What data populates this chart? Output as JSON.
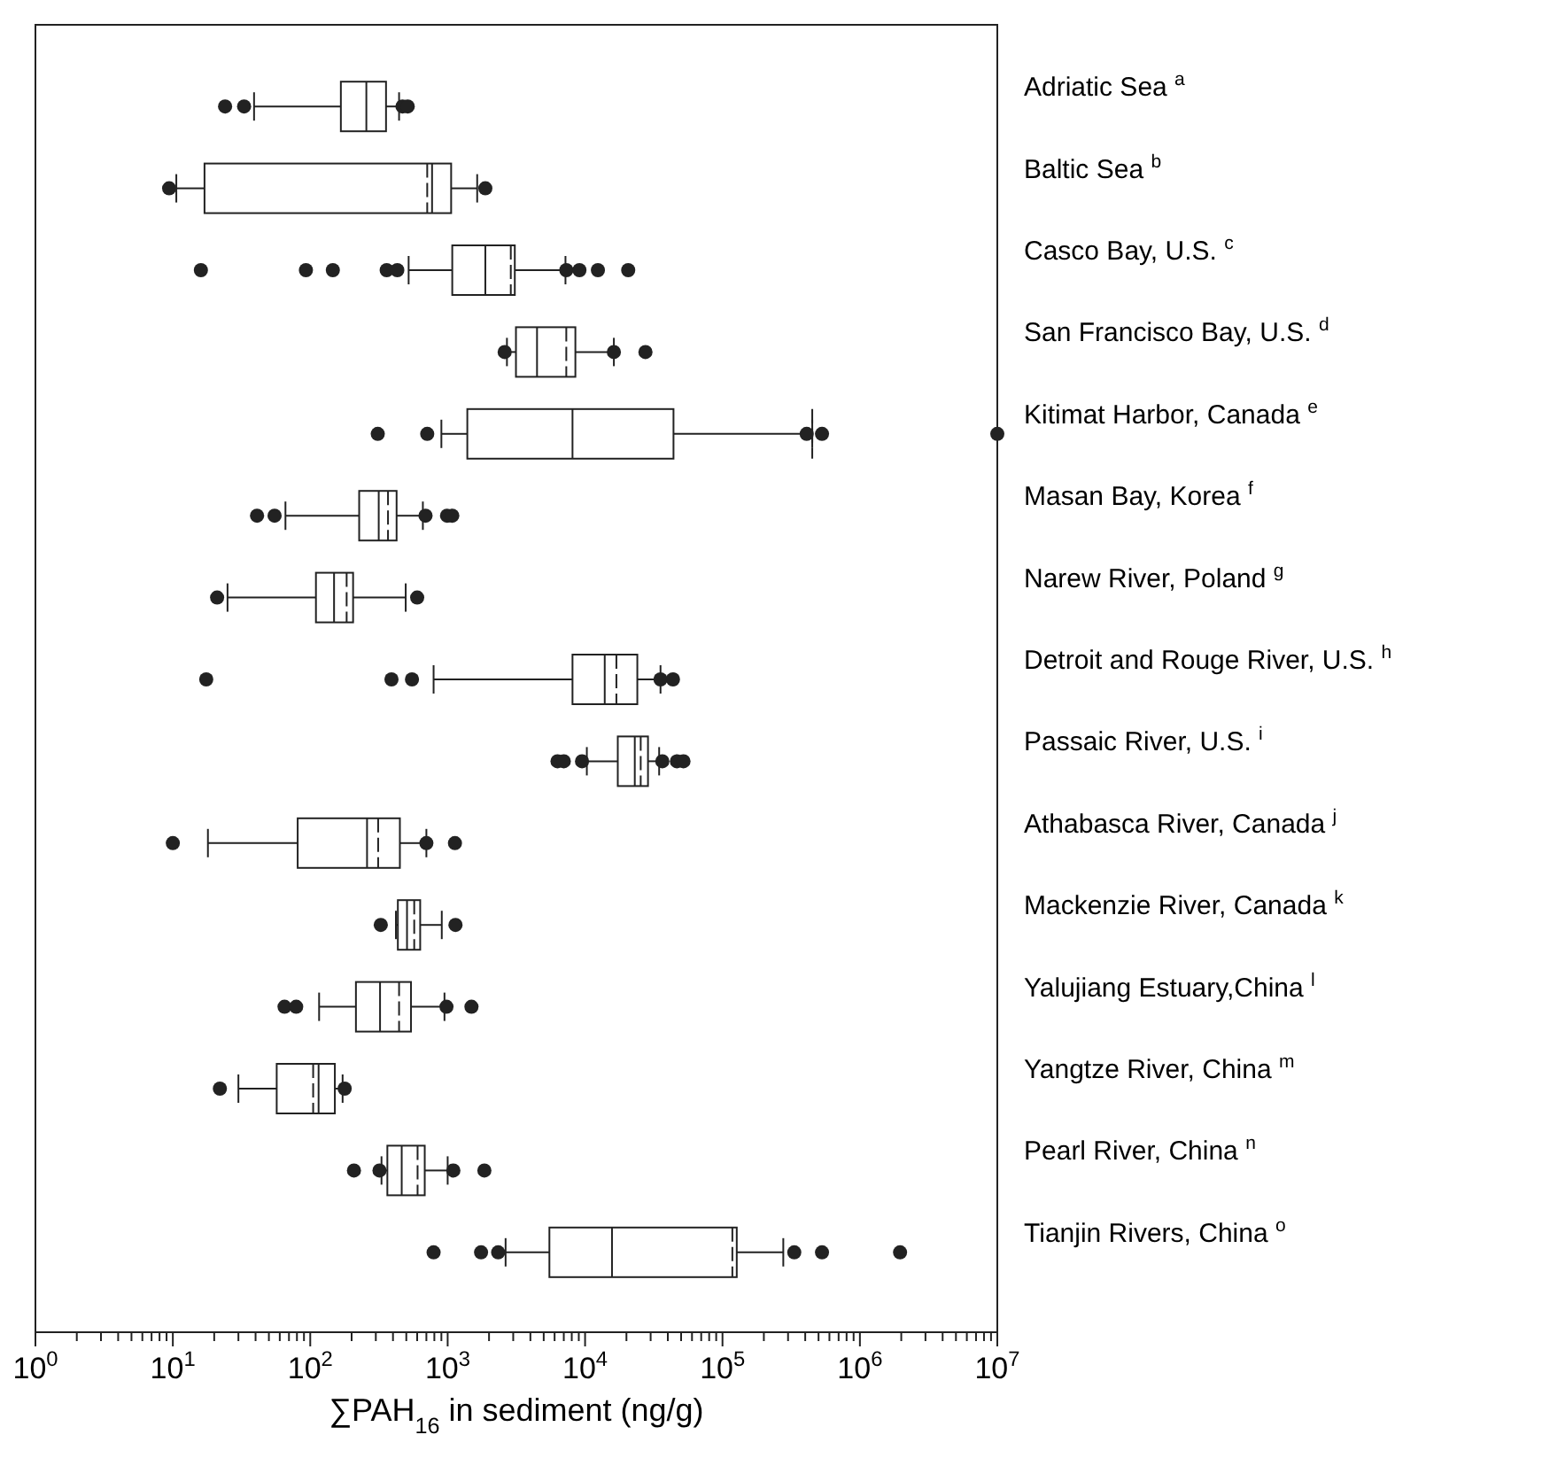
{
  "chart_data": {
    "type": "box",
    "orientation": "horizontal",
    "log": "x",
    "xlabel": "∑PAH$_{16}$ in sediment (ng/g)",
    "categories": [
      "Adriatic Sea $^{a}$",
      "Baltic Sea $^{b}$",
      "Casco Bay, U.S. $^{c}$",
      "San Francisco Bay, U.S. $^{d}$",
      "Kitimat Harbor, Canada $^{e}$",
      "Masan Bay, Korea $^{f}$",
      "Narew River, Poland $^{g}$",
      "Detroit and Rouge River, U.S. $^{h}$",
      "Passaic River, U.S. $^{i}$",
      "Athabasca River, Canada $^{j}$",
      "Mackenzie River, Canada $^{k}$",
      "Yalujiang Estuary,China $^{l}$",
      "Yangtze River, China $^{m}$",
      "Pearl River, China $^{n}$",
      "Tianjin Rivers, China $^{o}$"
    ],
    "boxes": [
      {
        "low": 39,
        "q1": 167,
        "median": 256,
        "q3": 356,
        "high": 443,
        "outliers": [
          24,
          33,
          469,
          512
        ]
      },
      {
        "low": 10.6,
        "q1": 17,
        "median": 770,
        "q3": 1060,
        "high": 1640,
        "mean": 710,
        "outliers": [
          9.4,
          1880
        ]
      },
      {
        "low": 520,
        "q1": 1080,
        "median": 1880,
        "q3": 3080,
        "high": 7200,
        "mean": 2880,
        "outliers": [
          16,
          93,
          146,
          360,
          430,
          7300,
          9100,
          12400,
          20600
        ]
      },
      {
        "low": 2700,
        "q1": 3140,
        "median": 4470,
        "q3": 8500,
        "high": 16200,
        "mean": 7300,
        "outliers": [
          2600,
          16200,
          27500
        ]
      },
      {
        "low": 900,
        "q1": 1390,
        "median": 8100,
        "q3": 44000,
        "high": 450000,
        "mean": 450000,
        "outliers": [
          310,
          710,
          410000,
          530000,
          10000000
        ]
      },
      {
        "low": 66,
        "q1": 227,
        "median": 315,
        "q3": 425,
        "high": 660,
        "mean": 368,
        "outliers": [
          41,
          55,
          690,
          990,
          1080
        ]
      },
      {
        "low": 25,
        "q1": 110,
        "median": 149,
        "q3": 205,
        "high": 495,
        "mean": 184,
        "outliers": [
          21,
          600
        ]
      },
      {
        "low": 790,
        "q1": 8100,
        "median": 13900,
        "q3": 24000,
        "high": 35400,
        "mean": 16900,
        "outliers": [
          17.5,
          390,
          550,
          35400,
          43600
        ]
      },
      {
        "low": 10300,
        "q1": 17300,
        "median": 23000,
        "q3": 28700,
        "high": 34600,
        "mean": 25400,
        "outliers": [
          6300,
          7000,
          9500,
          36500,
          46600,
          52000
        ]
      },
      {
        "low": 18,
        "q1": 81,
        "median": 259,
        "q3": 449,
        "high": 700,
        "mean": 312,
        "outliers": [
          10,
          700,
          1130
        ]
      },
      {
        "low": 420,
        "q1": 434,
        "median": 506,
        "q3": 631,
        "high": 906,
        "mean": 571,
        "outliers": [
          326,
          1140
        ]
      },
      {
        "low": 116,
        "q1": 215,
        "median": 322,
        "q3": 541,
        "high": 948,
        "mean": 443,
        "outliers": [
          65,
          79,
          980,
          1490
        ]
      },
      {
        "low": 30,
        "q1": 57,
        "median": 115,
        "q3": 151,
        "high": 172,
        "mean": 105,
        "outliers": [
          22,
          178
        ]
      },
      {
        "low": 330,
        "q1": 364,
        "median": 463,
        "q3": 681,
        "high": 1000,
        "mean": 604,
        "outliers": [
          208,
          319,
          1100,
          1850
        ]
      },
      {
        "low": 2640,
        "q1": 5500,
        "median": 15700,
        "q3": 127000,
        "high": 277000,
        "mean": 118000,
        "outliers": [
          790,
          1750,
          2330,
          333000,
          530000,
          1960000
        ]
      }
    ],
    "xlim": [
      1,
      10000000
    ],
    "xticks": [
      {
        "value": 1,
        "label": "10$^{0}$"
      },
      {
        "value": 2,
        "label": null
      },
      {
        "value": 3,
        "label": null
      },
      {
        "value": 4,
        "label": null
      },
      {
        "value": 5,
        "label": null
      },
      {
        "value": 6,
        "label": null
      },
      {
        "value": 7,
        "label": null
      },
      {
        "value": 8,
        "label": null
      },
      {
        "value": 9,
        "label": null
      },
      {
        "value": 10,
        "label": "10$^{1}$"
      },
      {
        "value": 20,
        "label": null
      },
      {
        "value": 30,
        "label": null
      },
      {
        "value": 40,
        "label": null
      },
      {
        "value": 50,
        "label": null
      },
      {
        "value": 60,
        "label": null
      },
      {
        "value": 70,
        "label": null
      },
      {
        "value": 80,
        "label": null
      },
      {
        "value": 90,
        "label": null
      },
      {
        "value": 100,
        "label": "10$^{2}$"
      },
      {
        "value": 200,
        "label": null
      },
      {
        "value": 300,
        "label": null
      },
      {
        "value": 400,
        "label": null
      },
      {
        "value": 500,
        "label": null
      },
      {
        "value": 600,
        "label": null
      },
      {
        "value": 700,
        "label": null
      },
      {
        "value": 800,
        "label": null
      },
      {
        "value": 900,
        "label": null
      },
      {
        "value": 1000,
        "label": "10$^{3}$"
      },
      {
        "value": 2000,
        "label": null
      },
      {
        "value": 3000,
        "label": null
      },
      {
        "value": 4000,
        "label": null
      },
      {
        "value": 5000,
        "label": null
      },
      {
        "value": 6000,
        "label": null
      },
      {
        "value": 7000,
        "label": null
      },
      {
        "value": 8000,
        "label": null
      },
      {
        "value": 9000,
        "label": null
      },
      {
        "value": 10000,
        "label": "10$^{4}$"
      },
      {
        "value": 20000,
        "label": null
      },
      {
        "value": 30000,
        "label": null
      },
      {
        "value": 40000,
        "label": null
      },
      {
        "value": 50000,
        "label": null
      },
      {
        "value": 60000,
        "label": null
      },
      {
        "value": 70000,
        "label": null
      },
      {
        "value": 80000,
        "label": null
      },
      {
        "value": 90000,
        "label": null
      },
      {
        "value": 100000,
        "label": "10$^{5}$"
      },
      {
        "value": 200000,
        "label": null
      },
      {
        "value": 300000,
        "label": null
      },
      {
        "value": 400000,
        "label": null
      },
      {
        "value": 500000,
        "label": null
      },
      {
        "value": 600000,
        "label": null
      },
      {
        "value": 700000,
        "label": null
      },
      {
        "value": 800000,
        "label": null
      },
      {
        "value": 900000,
        "label": null
      },
      {
        "value": 1000000,
        "label": "10$^{6}$"
      },
      {
        "value": 2000000,
        "label": null
      },
      {
        "value": 3000000,
        "label": null
      },
      {
        "value": 4000000,
        "label": null
      },
      {
        "value": 5000000,
        "label": null
      },
      {
        "value": 6000000,
        "label": null
      },
      {
        "value": 7000000,
        "label": null
      },
      {
        "value": 8000000,
        "label": null
      },
      {
        "value": 9000000,
        "label": null
      },
      {
        "value": 10000000,
        "label": "10$^{7}$"
      }
    ]
  }
}
